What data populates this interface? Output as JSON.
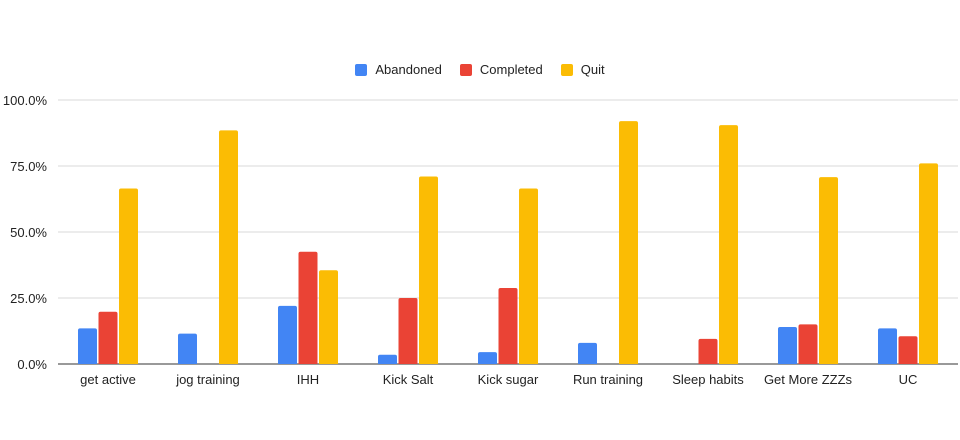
{
  "chart_data": {
    "type": "bar",
    "categories": [
      "get active",
      "jog training",
      "IHH",
      "Kick Salt",
      "Kick sugar",
      "Run training",
      "Sleep habits",
      "Get More ZZZs",
      "UC"
    ],
    "series": [
      {
        "name": "Abandoned",
        "color": "#4285f4",
        "values": [
          13.5,
          11.5,
          22.0,
          3.5,
          4.5,
          8.0,
          0,
          14.0,
          13.5
        ]
      },
      {
        "name": "Completed",
        "color": "#ea4335",
        "values": [
          19.8,
          0,
          42.5,
          25.0,
          28.8,
          0,
          9.5,
          15.0,
          10.5
        ]
      },
      {
        "name": "Quit",
        "color": "#fbbc04",
        "values": [
          66.5,
          88.5,
          35.5,
          71.0,
          66.5,
          92.0,
          90.5,
          70.8,
          76.0
        ]
      }
    ],
    "yticks": [
      "0.0%",
      "25.0%",
      "50.0%",
      "75.0%",
      "100.0%"
    ],
    "ylim": [
      0,
      100
    ],
    "grid": true,
    "legend_position": "top-center"
  }
}
